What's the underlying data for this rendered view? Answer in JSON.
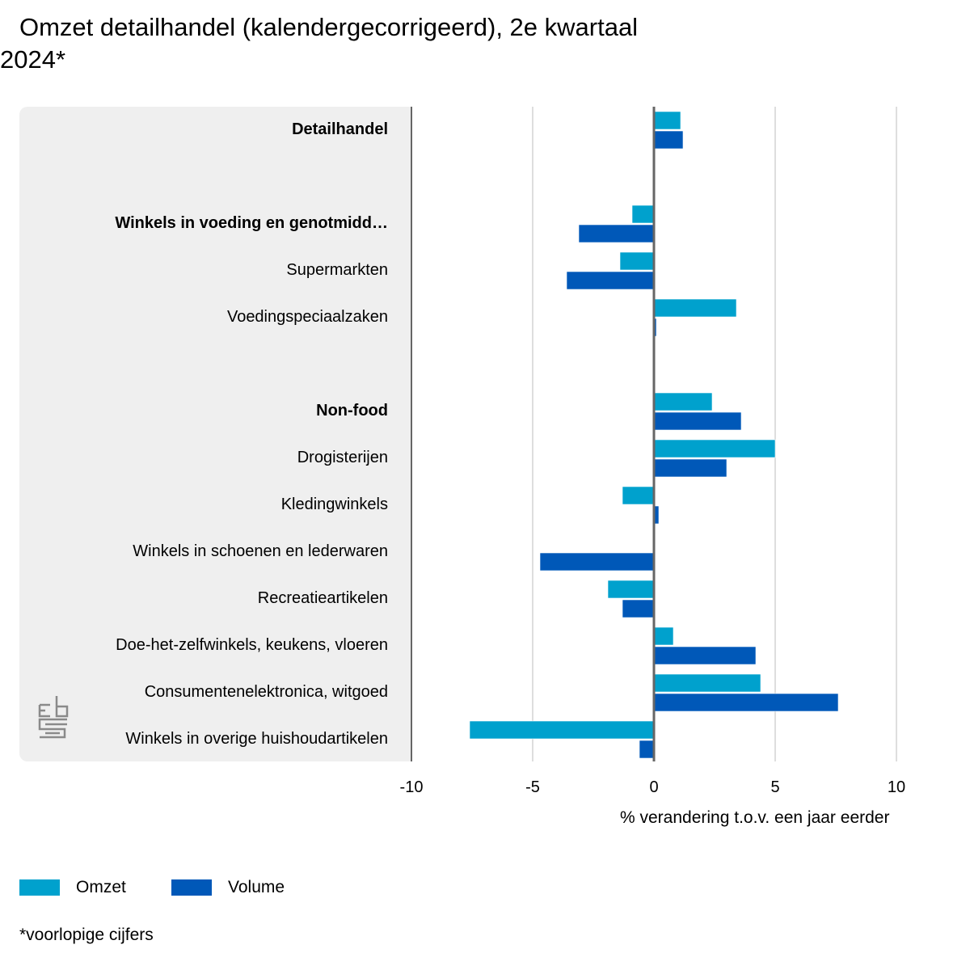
{
  "title_line1": "Omzet detailhandel (kalendergecorrigeerd), 2e kwartaal",
  "title_line2": "2024*",
  "footnote": "*voorlopige cijfers",
  "logo": "cbs-logo-icon",
  "chart_data": {
    "type": "bar",
    "orientation": "horizontal",
    "title": "Omzet detailhandel (kalendergecorrigeerd), 2e kwartaal 2024*",
    "xlabel": "% verandering t.o.v. een jaar eerder",
    "ylabel": "",
    "xlim": [
      -10,
      10
    ],
    "xticks": [
      -10,
      -5,
      0,
      5,
      10
    ],
    "grid": true,
    "legend_position": "bottom-left",
    "categories": [
      {
        "label": "Detailhandel",
        "bold": true,
        "slot": 0
      },
      {
        "label": "Winkels in voeding en genotmidd…",
        "bold": true,
        "slot": 2
      },
      {
        "label": "Supermarkten",
        "bold": false,
        "slot": 3
      },
      {
        "label": "Voedingspeciaalzaken",
        "bold": false,
        "slot": 4
      },
      {
        "label": "Non-food",
        "bold": true,
        "slot": 6
      },
      {
        "label": "Drogisterijen",
        "bold": false,
        "slot": 7
      },
      {
        "label": "Kledingwinkels",
        "bold": false,
        "slot": 8
      },
      {
        "label": "Winkels in schoenen en lederwaren",
        "bold": false,
        "slot": 9
      },
      {
        "label": "Recreatieartikelen",
        "bold": false,
        "slot": 10
      },
      {
        "label": "Doe-het-zelfwinkels, keukens, vloeren",
        "bold": false,
        "slot": 11
      },
      {
        "label": "Consumentenelektronica, witgoed",
        "bold": false,
        "slot": 12
      },
      {
        "label": "Winkels in overige huishoudartikelen",
        "bold": false,
        "slot": 13
      }
    ],
    "series": [
      {
        "name": "Omzet",
        "color": "#00a1cd",
        "values": [
          1.1,
          -0.9,
          -1.4,
          3.4,
          2.4,
          5.0,
          -1.3,
          0.0,
          -1.9,
          0.8,
          4.4,
          -7.6
        ]
      },
      {
        "name": "Volume",
        "color": "#0058b8",
        "values": [
          1.2,
          -3.1,
          -3.6,
          0.1,
          3.6,
          3.0,
          0.2,
          -4.7,
          -1.3,
          4.2,
          7.6,
          -0.6
        ]
      }
    ]
  }
}
